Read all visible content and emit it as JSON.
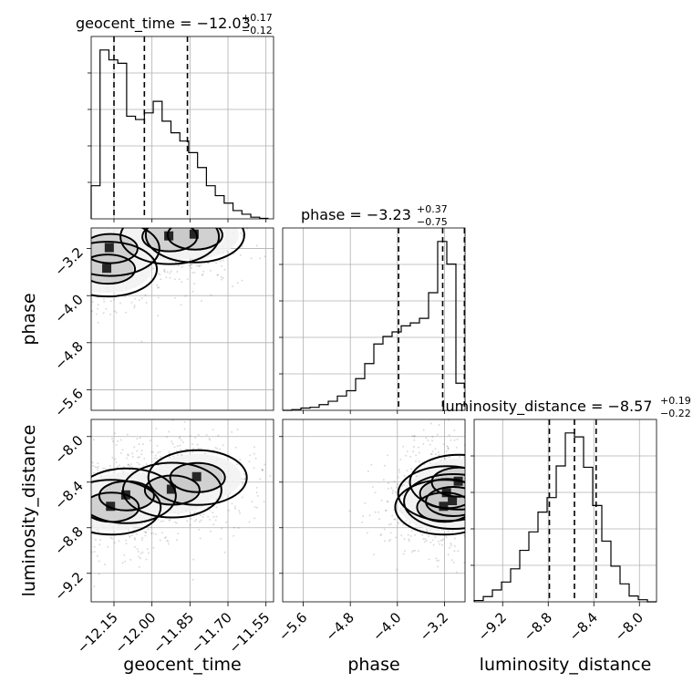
{
  "chart_data": {
    "type": "corner",
    "parameters": [
      "geocent_time",
      "phase",
      "luminosity_distance"
    ],
    "axes": {
      "geocent_time": {
        "label": "geocent_time",
        "range": [
          -12.24,
          -11.52
        ],
        "ticks": [
          -12.15,
          -12.0,
          -11.85,
          -11.7,
          -11.55
        ],
        "tick_labels": [
          "−12.15",
          "−12.00",
          "−11.85",
          "−11.70",
          "−11.55"
        ]
      },
      "phase": {
        "label": "phase",
        "range": [
          -5.95,
          -2.85
        ],
        "ticks": [
          -5.6,
          -4.8,
          -4.0,
          -3.2
        ],
        "tick_labels": [
          "−5.6",
          "−4.8",
          "−4.0",
          "−3.2"
        ]
      },
      "luminosity_distance": {
        "label": "luminosity_distance",
        "range": [
          -9.45,
          -7.85
        ],
        "ticks": [
          -9.2,
          -8.8,
          -8.4,
          -8.0
        ],
        "tick_labels": [
          "−9.2",
          "−8.8",
          "−8.4",
          "−8.0"
        ]
      }
    },
    "diagonal": [
      {
        "parameter": "geocent_time",
        "title_main": "geocent_time = −12.03",
        "title_sup": "+0.17",
        "title_sub": "−0.12",
        "quantiles": [
          -12.15,
          -12.03,
          -11.86
        ],
        "bin_edges": [
          -12.24,
          -12.205,
          -12.17,
          -12.135,
          -12.1,
          -12.065,
          -12.03,
          -11.995,
          -11.96,
          -11.925,
          -11.89,
          -11.855,
          -11.82,
          -11.785,
          -11.75,
          -11.715,
          -11.68,
          -11.645,
          -11.61,
          -11.575,
          -11.54
        ],
        "counts": [
          200,
          1020,
          960,
          940,
          620,
          600,
          640,
          710,
          590,
          520,
          470,
          400,
          310,
          200,
          140,
          95,
          50,
          28,
          10,
          3
        ]
      },
      {
        "parameter": "phase",
        "title_main": "phase = −3.23",
        "title_sup": "+0.37",
        "title_sub": "−0.75",
        "quantiles": [
          -3.98,
          -3.23,
          -2.86
        ],
        "bin_edges": [
          -5.95,
          -5.795,
          -5.64,
          -5.485,
          -5.33,
          -5.175,
          -5.02,
          -4.865,
          -4.71,
          -4.555,
          -4.4,
          -4.245,
          -4.09,
          -3.935,
          -3.78,
          -3.625,
          -3.47,
          -3.315,
          -3.16,
          -3.005,
          -2.85
        ],
        "counts": [
          0,
          5,
          15,
          20,
          38,
          60,
          95,
          130,
          210,
          310,
          440,
          490,
          520,
          560,
          580,
          610,
          780,
          1120,
          970,
          180
        ]
      },
      {
        "parameter": "luminosity_distance",
        "title_main": "luminosity_distance = −8.57",
        "title_sup": "+0.19",
        "title_sub": "−0.22",
        "quantiles": [
          -8.79,
          -8.57,
          -8.38
        ],
        "bin_edges": [
          -9.45,
          -9.37,
          -9.29,
          -9.21,
          -9.13,
          -9.05,
          -8.97,
          -8.89,
          -8.81,
          -8.73,
          -8.65,
          -8.57,
          -8.49,
          -8.41,
          -8.33,
          -8.25,
          -8.17,
          -8.09,
          -8.01,
          -7.93,
          -7.85
        ],
        "counts": [
          5,
          20,
          45,
          75,
          125,
          195,
          265,
          340,
          395,
          515,
          640,
          625,
          510,
          365,
          230,
          135,
          68,
          22,
          8,
          0
        ]
      }
    ],
    "pairs": [
      {
        "x": "geocent_time",
        "y": "phase",
        "density_peaks": [
          [
            -12.165,
            -3.2
          ],
          [
            -12.175,
            -3.55
          ],
          [
            -11.93,
            -3.0
          ],
          [
            -11.83,
            -2.97
          ]
        ]
      },
      {
        "x": "geocent_time",
        "y": "luminosity_distance",
        "density_peaks": [
          [
            -12.16,
            -8.62
          ],
          [
            -12.1,
            -8.52
          ],
          [
            -11.92,
            -8.47
          ],
          [
            -11.82,
            -8.36
          ]
        ]
      },
      {
        "x": "phase",
        "y": "luminosity_distance",
        "density_peaks": [
          [
            -3.2,
            -8.62
          ],
          [
            -3.05,
            -8.57
          ],
          [
            -3.15,
            -8.5
          ],
          [
            -2.95,
            -8.4
          ]
        ]
      }
    ]
  }
}
